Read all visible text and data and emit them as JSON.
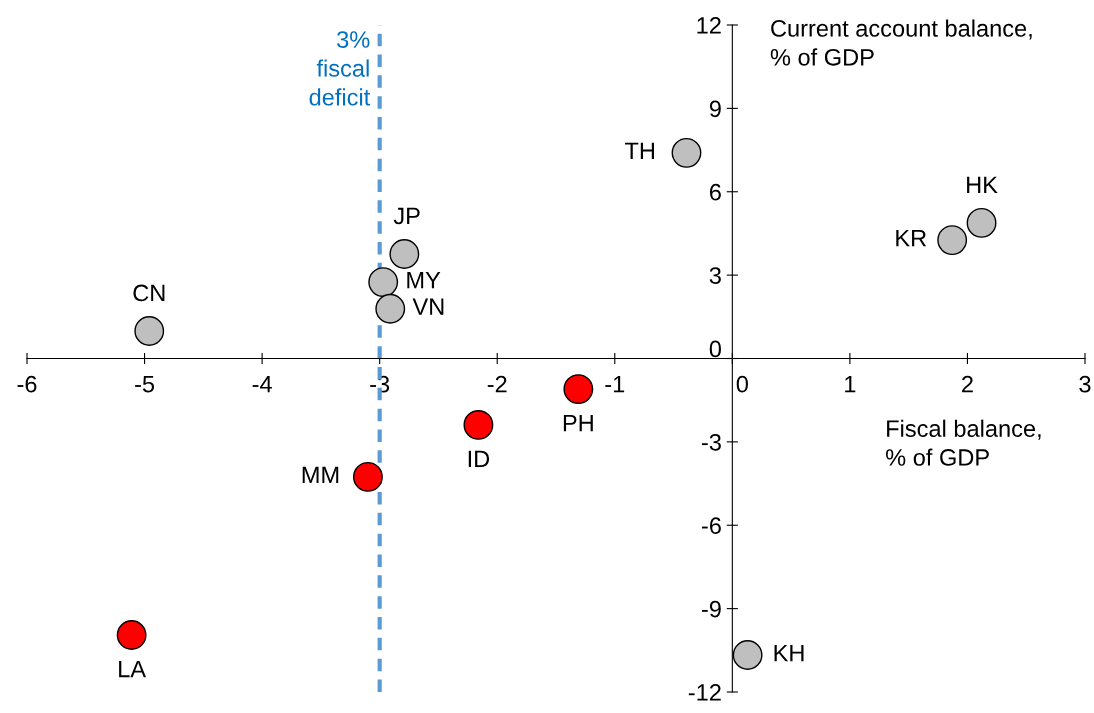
{
  "chart_data": {
    "type": "scatter",
    "xlabel": "Fiscal balance,\n% of GDP",
    "ylabel": "Current account balance,\n% of GDP",
    "series": [
      {
        "color": "#bfbfbf",
        "x": [
          -0.39,
          2.12,
          1.87,
          -2.79,
          -2.97,
          -2.91,
          -4.96,
          0.13
        ],
        "values": [
          7.4,
          4.88,
          4.26,
          3.76,
          2.75,
          1.79,
          0.99,
          -10.67
        ]
      },
      {
        "color": "#ff0000",
        "x": [
          -1.31,
          -2.16,
          -3.1,
          -5.11
        ],
        "values": [
          -1.1,
          -2.39,
          -4.26,
          -9.95
        ]
      }
    ],
    "annotations": [
      {
        "text": "TH",
        "x": -0.39,
        "y": 7.4
      },
      {
        "text": "HK",
        "x": 2.12,
        "y": 4.88
      },
      {
        "text": "KR",
        "x": 1.87,
        "y": 4.26
      },
      {
        "text": "JP",
        "x": -2.79,
        "y": 3.76
      },
      {
        "text": "MY",
        "x": -2.97,
        "y": 2.75
      },
      {
        "text": "VN",
        "x": -2.91,
        "y": 1.79
      },
      {
        "text": "CN",
        "x": -4.96,
        "y": 0.99
      },
      {
        "text": "KH",
        "x": 0.13,
        "y": -10.67
      },
      {
        "text": "PH",
        "x": -1.31,
        "y": -1.1
      },
      {
        "text": "ID",
        "x": -2.16,
        "y": -2.39
      },
      {
        "text": "MM",
        "x": -3.1,
        "y": -4.26
      },
      {
        "text": "LA",
        "x": -5.11,
        "y": -9.95
      }
    ],
    "ref_lines": [
      {
        "axis": "x",
        "value": -3,
        "label": "3%\nfiscal\ndeficit",
        "color": "#5b9bd5",
        "line_style": "dashed"
      }
    ],
    "xlim": [
      -6,
      3
    ],
    "xticks": [
      -6,
      -5,
      -4,
      -3,
      -2,
      -1,
      0,
      1,
      2,
      3
    ],
    "ylim": [
      -12,
      12
    ],
    "yticks": [
      -12,
      -9,
      -6,
      -3,
      0,
      3,
      6,
      9,
      12
    ],
    "grid": false,
    "legend": false,
    "marker": "circle"
  }
}
